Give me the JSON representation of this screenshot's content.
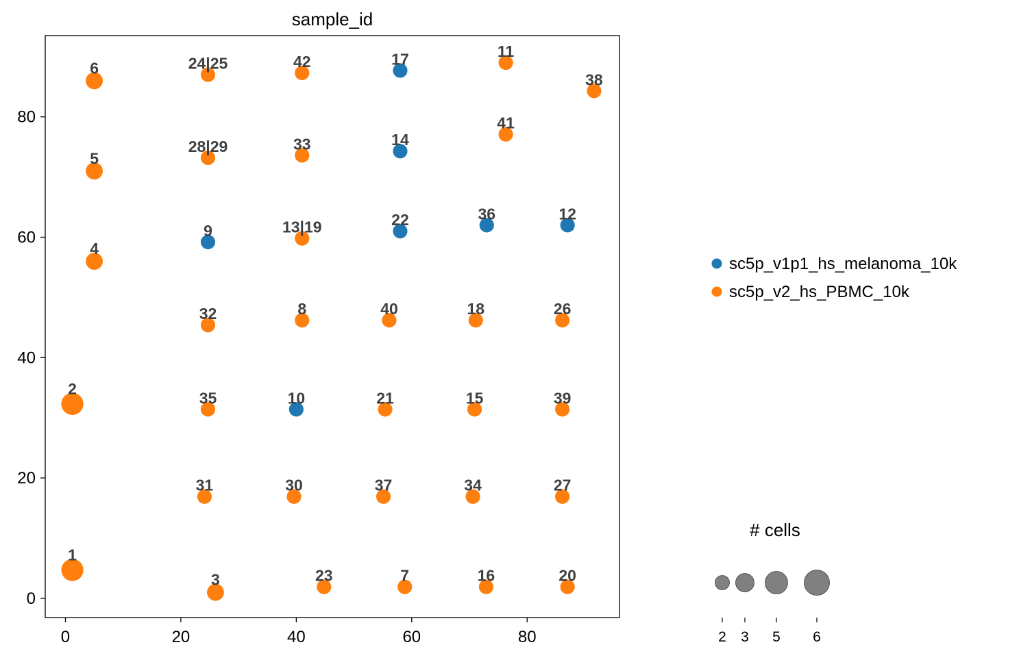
{
  "chart_data": {
    "type": "scatter",
    "title": "sample_id",
    "xlabel": "",
    "ylabel": "",
    "xlim": [
      -3.5,
      96
    ],
    "ylim": [
      -3.2,
      93.5
    ],
    "xticks": [
      0,
      20,
      40,
      60,
      80
    ],
    "yticks": [
      0,
      20,
      40,
      60,
      80
    ],
    "grid": false,
    "legend_position": "right",
    "series": [
      {
        "name": "sc5p_v1p1_hs_melanoma_10k",
        "color": "#1f77b4"
      },
      {
        "name": "sc5p_v2_hs_PBMC_10k",
        "color": "#ff7f0e"
      }
    ],
    "points": [
      {
        "label": "1",
        "x": 1.2,
        "y": 4.7,
        "cells": 7,
        "series": 1
      },
      {
        "label": "2",
        "x": 1.2,
        "y": 32.3,
        "cells": 7,
        "series": 1
      },
      {
        "label": "3",
        "x": 26.0,
        "y": 1.0,
        "cells": 5,
        "series": 1
      },
      {
        "label": "4",
        "x": 5.0,
        "y": 56.0,
        "cells": 5,
        "series": 1
      },
      {
        "label": "5",
        "x": 5.0,
        "y": 71.0,
        "cells": 5,
        "series": 1
      },
      {
        "label": "6",
        "x": 5.0,
        "y": 86.0,
        "cells": 5,
        "series": 1
      },
      {
        "label": "7",
        "x": 58.8,
        "y": 1.9,
        "cells": 4,
        "series": 1
      },
      {
        "label": "8",
        "x": 41.0,
        "y": 46.2,
        "cells": 4,
        "series": 1
      },
      {
        "label": "9",
        "x": 24.7,
        "y": 59.2,
        "cells": 4,
        "series": 0
      },
      {
        "label": "10",
        "x": 40.0,
        "y": 31.4,
        "cells": 4,
        "series": 0
      },
      {
        "label": "11",
        "x": 76.3,
        "y": 89.0,
        "cells": 4,
        "series": 1
      },
      {
        "label": "12",
        "x": 87.0,
        "y": 62.0,
        "cells": 4,
        "series": 0
      },
      {
        "label": "13|19",
        "x": 41.0,
        "y": 59.8,
        "cells": 4,
        "series": 1
      },
      {
        "label": "14",
        "x": 58.0,
        "y": 74.3,
        "cells": 4,
        "series": 0
      },
      {
        "label": "15",
        "x": 70.9,
        "y": 31.4,
        "cells": 4,
        "series": 1
      },
      {
        "label": "16",
        "x": 72.9,
        "y": 1.9,
        "cells": 4,
        "series": 1
      },
      {
        "label": "17",
        "x": 58.0,
        "y": 87.7,
        "cells": 4,
        "series": 0
      },
      {
        "label": "18",
        "x": 71.1,
        "y": 46.2,
        "cells": 4,
        "series": 1
      },
      {
        "label": "20",
        "x": 87.0,
        "y": 1.9,
        "cells": 4,
        "series": 1
      },
      {
        "label": "21",
        "x": 55.4,
        "y": 31.4,
        "cells": 4,
        "series": 1
      },
      {
        "label": "22",
        "x": 58.0,
        "y": 61.0,
        "cells": 4,
        "series": 0
      },
      {
        "label": "23",
        "x": 44.8,
        "y": 1.9,
        "cells": 4,
        "series": 1
      },
      {
        "label": "24|25",
        "x": 24.7,
        "y": 87.0,
        "cells": 4,
        "series": 1
      },
      {
        "label": "26",
        "x": 86.1,
        "y": 46.2,
        "cells": 4,
        "series": 1
      },
      {
        "label": "27",
        "x": 86.1,
        "y": 16.9,
        "cells": 4,
        "series": 1
      },
      {
        "label": "28|29",
        "x": 24.7,
        "y": 73.2,
        "cells": 4,
        "series": 1
      },
      {
        "label": "30",
        "x": 39.6,
        "y": 16.9,
        "cells": 4,
        "series": 1
      },
      {
        "label": "31",
        "x": 24.1,
        "y": 16.9,
        "cells": 4,
        "series": 1
      },
      {
        "label": "32",
        "x": 24.7,
        "y": 45.4,
        "cells": 4,
        "series": 1
      },
      {
        "label": "33",
        "x": 41.0,
        "y": 73.6,
        "cells": 4,
        "series": 1
      },
      {
        "label": "34",
        "x": 70.6,
        "y": 16.9,
        "cells": 4,
        "series": 1
      },
      {
        "label": "35",
        "x": 24.7,
        "y": 31.4,
        "cells": 4,
        "series": 1
      },
      {
        "label": "36",
        "x": 73.0,
        "y": 62.0,
        "cells": 4,
        "series": 0
      },
      {
        "label": "37",
        "x": 55.1,
        "y": 16.9,
        "cells": 4,
        "series": 1
      },
      {
        "label": "38",
        "x": 91.6,
        "y": 84.3,
        "cells": 4,
        "series": 1
      },
      {
        "label": "39",
        "x": 86.1,
        "y": 31.4,
        "cells": 4,
        "series": 1
      },
      {
        "label": "40",
        "x": 56.1,
        "y": 46.2,
        "cells": 4,
        "series": 1
      },
      {
        "label": "41",
        "x": 76.3,
        "y": 77.1,
        "cells": 4,
        "series": 1
      },
      {
        "label": "42",
        "x": 41.0,
        "y": 87.3,
        "cells": 4,
        "series": 1
      }
    ],
    "size_legend": {
      "title": "# cells",
      "values": [
        2,
        3,
        5,
        6
      ]
    }
  }
}
